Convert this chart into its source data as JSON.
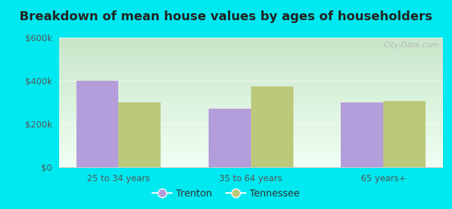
{
  "title": "Breakdown of mean house values by ages of householders",
  "categories": [
    "25 to 34 years",
    "35 to 64 years",
    "65 years+"
  ],
  "trenton_values": [
    400000,
    270000,
    300000
  ],
  "tennessee_values": [
    300000,
    375000,
    305000
  ],
  "trenton_color": "#b39ddb",
  "tennessee_color": "#bcc97a",
  "background_outer": "#00e8f0",
  "gradient_top": "#c8e6c9",
  "gradient_bottom": "#f0fff4",
  "ylim": [
    0,
    600000
  ],
  "yticks": [
    0,
    200000,
    400000,
    600000
  ],
  "ytick_labels": [
    "$0",
    "$200k",
    "$400k",
    "$600k"
  ],
  "bar_width": 0.32,
  "legend_labels": [
    "Trenton",
    "Tennessee"
  ],
  "title_fontsize": 13,
  "tick_fontsize": 9,
  "legend_fontsize": 10,
  "watermark": "City-Data.com"
}
